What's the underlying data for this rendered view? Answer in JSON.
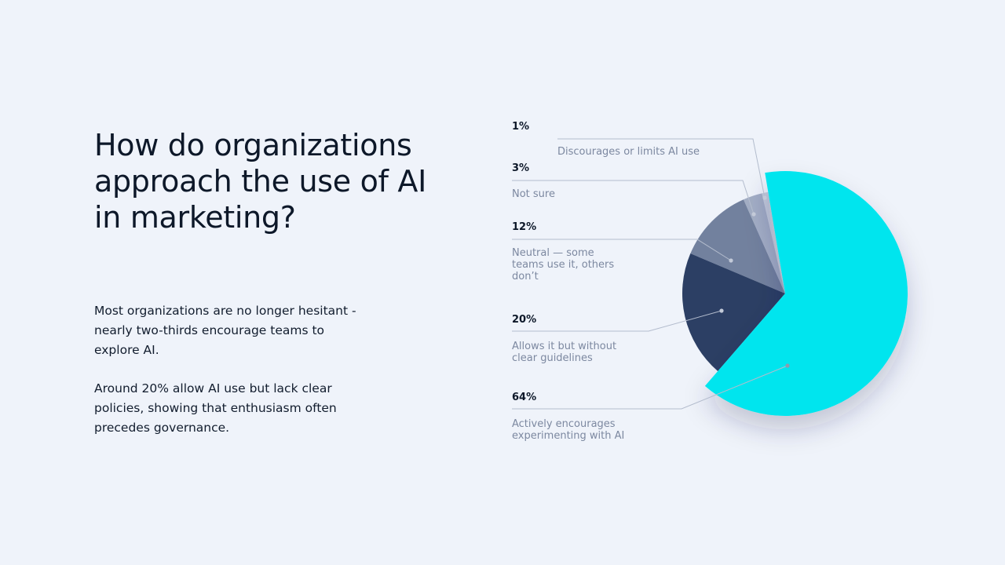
{
  "title": "How do organizations approach the use of AI in marketing?",
  "paragraphs": [
    "Most organizations are no longer hesitant - nearly two-thirds encourage teams to explore AI.",
    "Around 20% allow AI use but lack clear policies, showing that enthusiasm often precedes governance."
  ],
  "chart_data": {
    "type": "pie",
    "slices": [
      {
        "label": "Actively encourages experimenting with AI",
        "value": 64,
        "value_label": "64%",
        "color": "#00e5ee",
        "exploded": true
      },
      {
        "label": "Allows it but without clear guidelines",
        "value": 20,
        "value_label": "20%",
        "color": "#2c3f64"
      },
      {
        "label": "Neutral — some teams use it, others don’t",
        "value": 12,
        "value_label": "12%",
        "color": "#72819e"
      },
      {
        "label": "Not sure",
        "value": 3,
        "value_label": "3%",
        "color": "#a3aec5"
      },
      {
        "label": "Discourages or limits AI use",
        "value": 1,
        "value_label": "1%",
        "color": "#c5cddc"
      }
    ]
  }
}
